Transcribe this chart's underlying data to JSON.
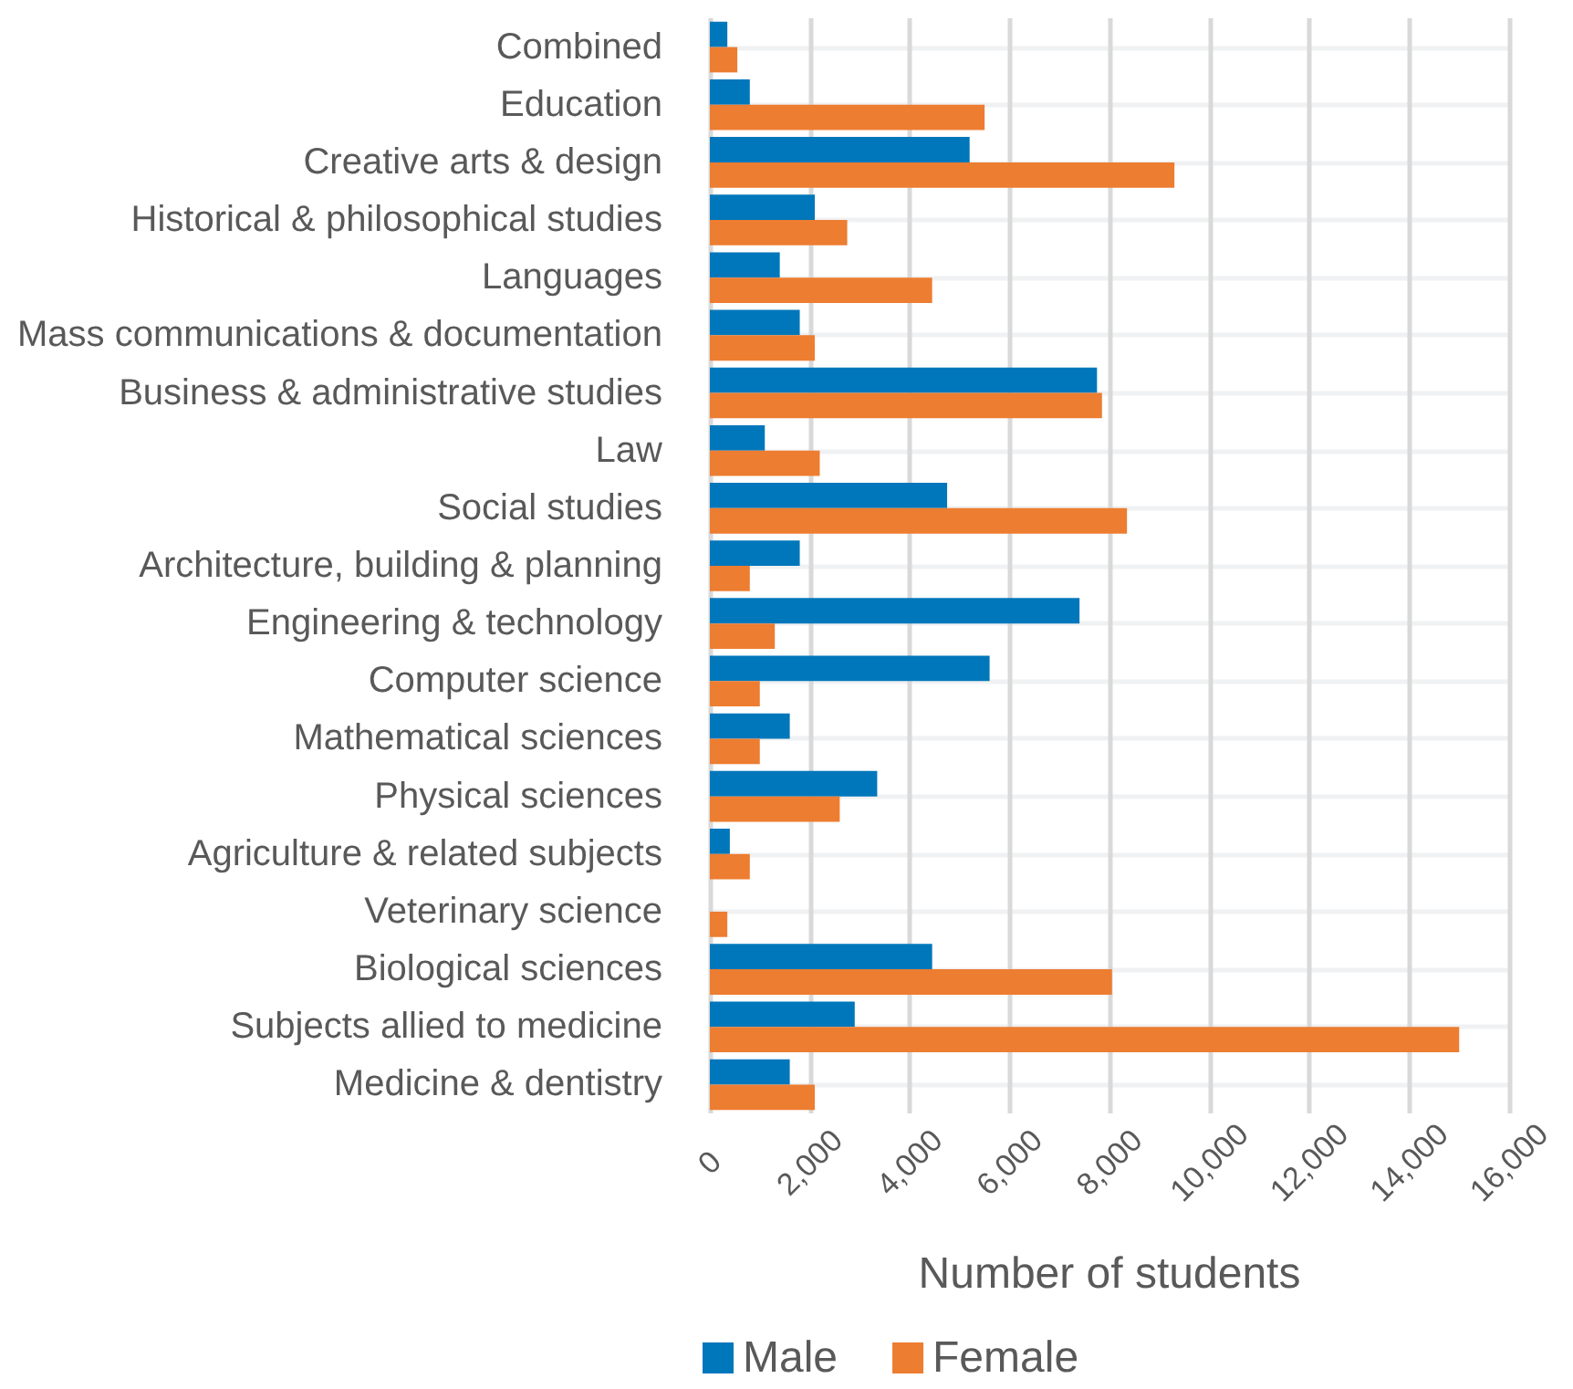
{
  "chart_data": {
    "type": "bar",
    "orientation": "horizontal",
    "xlabel": "Number of students",
    "categories": [
      "Combined",
      "Education",
      "Creative arts & design",
      "Historical & philosophical studies",
      "Languages",
      "Mass communications & documentation",
      "Business & administrative studies",
      "Law",
      "Social studies",
      "Architecture, building & planning",
      "Engineering & technology",
      "Computer science",
      "Mathematical sciences",
      "Physical sciences",
      "Agriculture & related subjects",
      "Veterinary science",
      "Biological sciences",
      "Subjects allied to medicine",
      "Medicine & dentistry"
    ],
    "series": [
      {
        "name": "Male",
        "color": "#0077bb",
        "values": [
          350,
          800,
          5200,
          2100,
          1400,
          1800,
          7750,
          1100,
          4750,
          1800,
          7400,
          5600,
          1600,
          3350,
          400,
          0,
          4450,
          2900,
          1600
        ]
      },
      {
        "name": "Female",
        "color": "#ed7d31",
        "values": [
          550,
          5500,
          9300,
          2750,
          4450,
          2100,
          7850,
          2200,
          8350,
          800,
          1300,
          1000,
          1000,
          2600,
          800,
          350,
          8050,
          15000,
          2100
        ]
      }
    ],
    "xlim": [
      0,
      16000
    ],
    "xticks": [
      0,
      {
        "value": 2000,
        "label": "2,000"
      },
      {
        "value": 4000,
        "label": "4,000"
      },
      {
        "value": 6000,
        "label": "6,000"
      },
      {
        "value": 8000,
        "label": "8,000"
      },
      {
        "value": 10000,
        "label": "10,000"
      },
      {
        "value": 12000,
        "label": "12,000"
      },
      {
        "value": 14000,
        "label": "14,000"
      },
      {
        "value": 16000,
        "label": "16,000"
      }
    ],
    "grid": true,
    "legend": "bottom"
  }
}
